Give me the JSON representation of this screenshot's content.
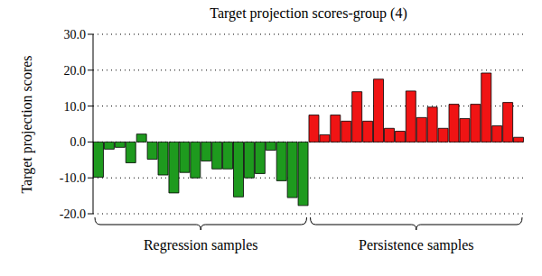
{
  "chart_data": {
    "type": "bar",
    "title": "Target projection scores-group (4)",
    "y_label": "Target projection scores",
    "categories": [
      null,
      null,
      null,
      null,
      null,
      null,
      null,
      null,
      null,
      null,
      null,
      null,
      null,
      null,
      null,
      null,
      null,
      null,
      null,
      null,
      null,
      null,
      null,
      null,
      null,
      null,
      null,
      null,
      null,
      null,
      null,
      null,
      null,
      null,
      null,
      null,
      null,
      null,
      null,
      null
    ],
    "series": [
      {
        "name": "Regression samples",
        "color": "#1e9a1e",
        "values": [
          -9.8,
          -2.0,
          -1.5,
          -5.8,
          2.2,
          -4.8,
          -9.2,
          -14.2,
          -8.5,
          -10.0,
          -5.3,
          -7.5,
          -7.5,
          -15.3,
          -10.0,
          -8.8,
          -2.3,
          -10.8,
          -15.5,
          -17.7,
          null,
          null,
          null,
          null,
          null,
          null,
          null,
          null,
          null,
          null,
          null,
          null,
          null,
          null,
          null,
          null,
          null,
          null,
          null,
          null
        ]
      },
      {
        "name": "Persistence samples",
        "color": "#f01414",
        "values": [
          null,
          null,
          null,
          null,
          null,
          null,
          null,
          null,
          null,
          null,
          null,
          null,
          null,
          null,
          null,
          null,
          null,
          null,
          null,
          null,
          7.5,
          2.0,
          7.5,
          5.8,
          14.0,
          5.8,
          17.5,
          3.8,
          3.0,
          14.2,
          6.8,
          9.7,
          3.8,
          10.5,
          6.5,
          10.5,
          19.2,
          4.5,
          11.0,
          1.3
        ]
      }
    ],
    "ylim": [
      -20,
      30
    ],
    "yticks": [
      {
        "value": -20,
        "label": "-20.0"
      },
      {
        "value": -10,
        "label": "-10.0"
      },
      {
        "value": 0,
        "label": "0.0"
      },
      {
        "value": 10,
        "label": "10.0"
      },
      {
        "value": 20,
        "label": "20.0"
      },
      {
        "value": 30,
        "label": "30.0"
      }
    ],
    "grid": true,
    "tick_labels": "y"
  }
}
